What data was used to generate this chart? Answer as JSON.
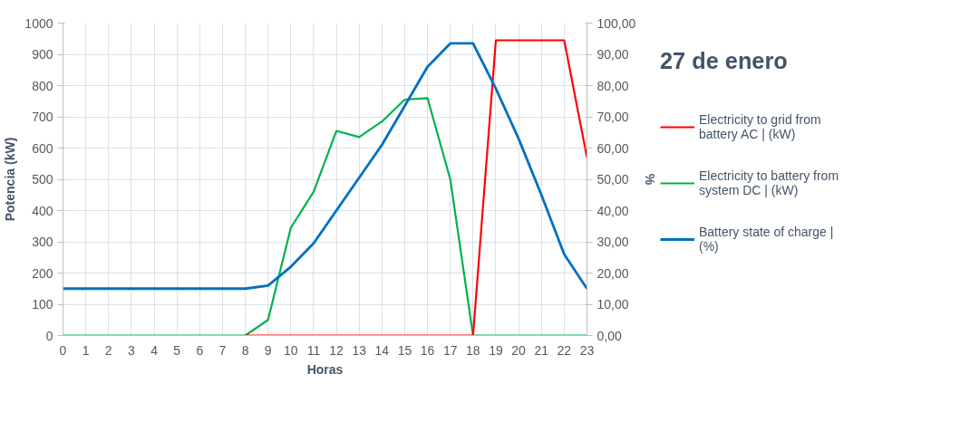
{
  "chart_data": {
    "type": "line",
    "title": "27 de enero",
    "xlabel": "Horas",
    "ylabel": "Potencia (kW)",
    "y2label": "%",
    "x": [
      0,
      1,
      2,
      3,
      4,
      5,
      6,
      7,
      8,
      9,
      10,
      11,
      12,
      13,
      14,
      15,
      16,
      17,
      18,
      19,
      20,
      21,
      22,
      23
    ],
    "series": [
      {
        "name": "Electricity to grid from battery AC | (kW)",
        "color": "#ff0000",
        "values": [
          null,
          null,
          null,
          null,
          null,
          null,
          null,
          null,
          0,
          0,
          0,
          0,
          0,
          0,
          0,
          0,
          0,
          0,
          0,
          945,
          945,
          945,
          945,
          570
        ]
      },
      {
        "name": "Electricity to battery from system DC | (kW)",
        "color": "#00b050",
        "values": [
          0,
          0,
          0,
          0,
          0,
          0,
          0,
          0,
          0,
          50,
          345,
          460,
          655,
          635,
          685,
          755,
          760,
          500,
          0,
          0,
          0,
          0,
          0,
          0
        ]
      },
      {
        "name": "Battery state of charge | (%)",
        "color": "#0070c0",
        "axis": "y2",
        "values": [
          15,
          15,
          15,
          15,
          15,
          15,
          15,
          15,
          15,
          16,
          22,
          29.5,
          40,
          50.5,
          61,
          73.5,
          86,
          93.5,
          93.5,
          79,
          63,
          45,
          26,
          15
        ]
      }
    ],
    "xlim": [
      0,
      23
    ],
    "xticks": [
      0,
      1,
      2,
      3,
      4,
      5,
      6,
      7,
      8,
      9,
      10,
      11,
      12,
      13,
      14,
      15,
      16,
      17,
      18,
      19,
      20,
      21,
      22,
      23
    ],
    "ylim": [
      0,
      1000
    ],
    "yticks": [
      0,
      100,
      200,
      300,
      400,
      500,
      600,
      700,
      800,
      900,
      1000
    ],
    "y2lim": [
      0,
      100
    ],
    "y2ticks": [
      {
        "value": 0,
        "label": "0,00"
      },
      {
        "value": 10,
        "label": "10,00"
      },
      {
        "value": 20,
        "label": "20,00"
      },
      {
        "value": 30,
        "label": "30,00"
      },
      {
        "value": 40,
        "label": "40,00"
      },
      {
        "value": 50,
        "label": "50,00"
      },
      {
        "value": 60,
        "label": "60,00"
      },
      {
        "value": 70,
        "label": "70,00"
      },
      {
        "value": 80,
        "label": "80,00"
      },
      {
        "value": 90,
        "label": "90,00"
      },
      {
        "value": 100,
        "label": "100,00"
      }
    ],
    "grid": true,
    "legend": "right",
    "line_style": "solid",
    "marker": "none"
  }
}
